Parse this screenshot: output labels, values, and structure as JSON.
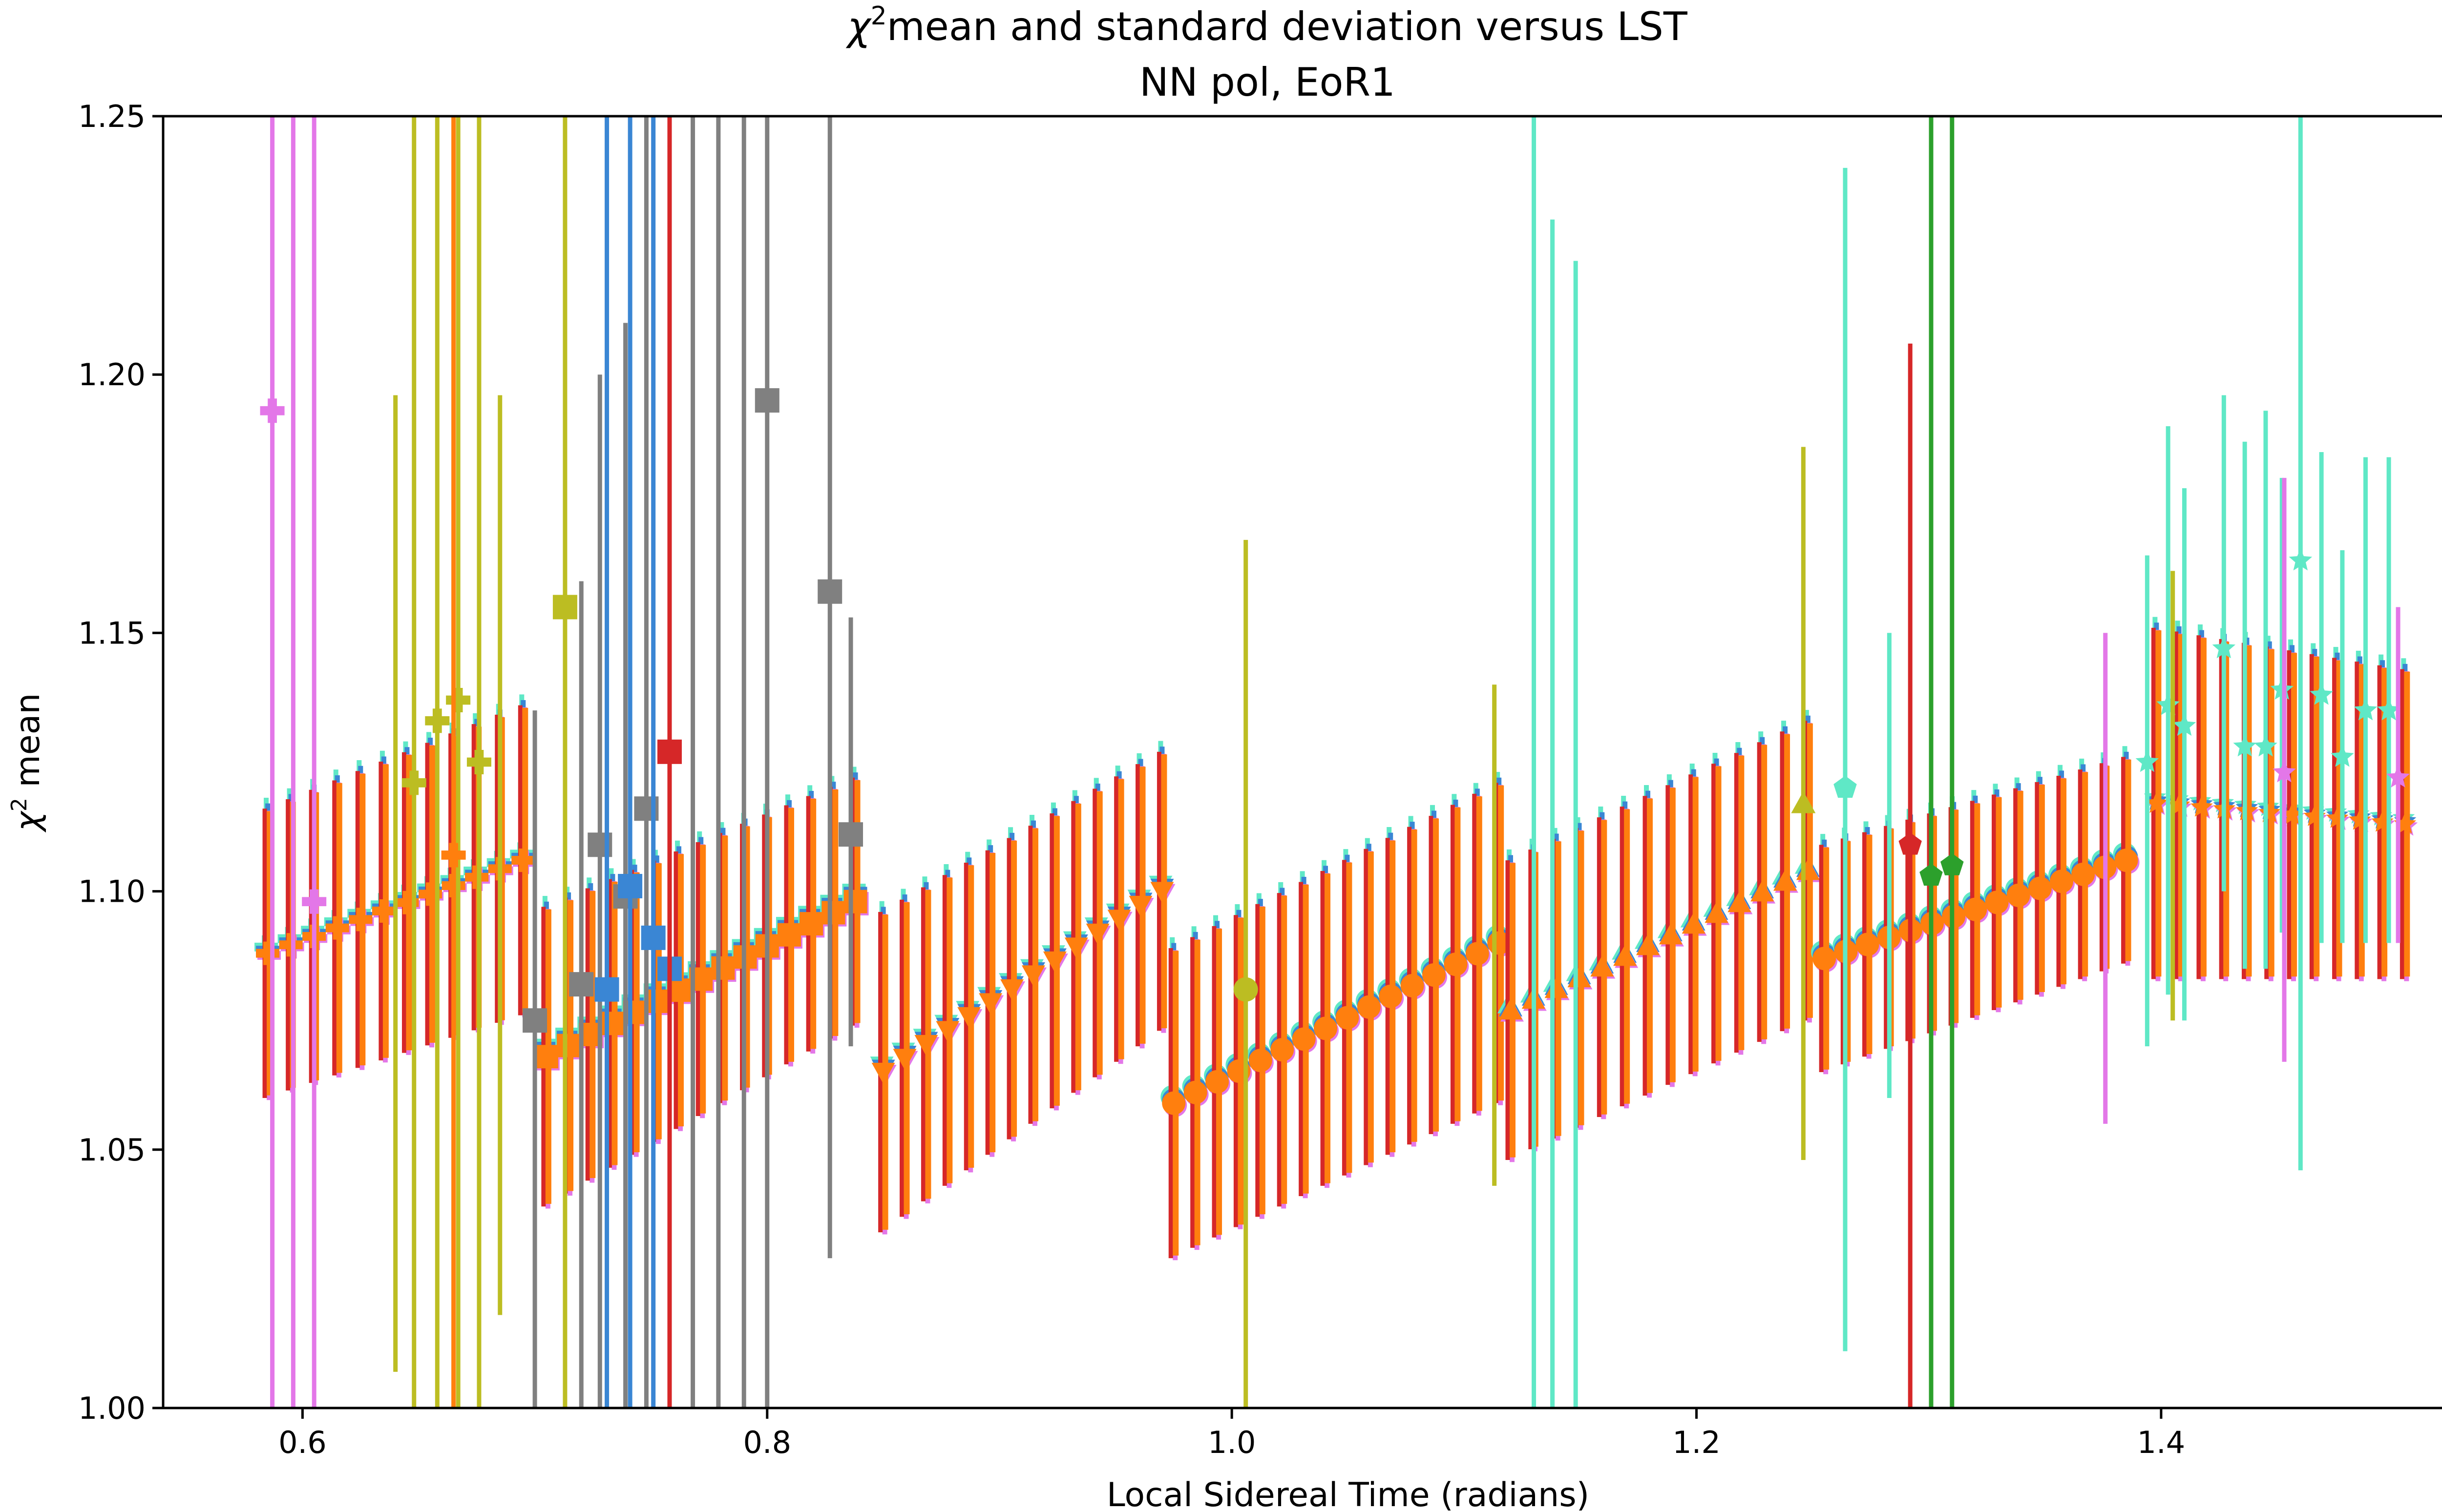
{
  "chart_data": {
    "type": "scatter",
    "title": "χ² mean and standard deviation versus LST",
    "title_main": "mean and standard deviation versus LST",
    "title_symbol": "χ",
    "title_superscript": "2",
    "subtitle": "NN pol, EoR1",
    "xlabel": "Local Sidereal Time (radians)",
    "ylabel": "χ² mean",
    "ylabel_symbol": "χ",
    "ylabel_superscript": "2",
    "ylabel_rest": " mean",
    "xlim": [
      0.54,
      1.56
    ],
    "ylim": [
      1.0,
      1.25
    ],
    "xticks": [
      0.6,
      0.8,
      1.0,
      1.2,
      1.4
    ],
    "xtick_labels": [
      "0.6",
      "0.8",
      "1.0",
      "1.2",
      "1.4"
    ],
    "yticks": [
      1.0,
      1.05,
      1.1,
      1.15,
      1.2,
      1.25
    ],
    "ytick_labels": [
      "1.00",
      "1.05",
      "1.10",
      "1.15",
      "1.20",
      "1.25"
    ],
    "grid": false,
    "segments": [
      {
        "x_start": 0.585,
        "x_end": 0.695,
        "y_start": 1.088,
        "y_end": 1.106,
        "err_start": 0.028,
        "err_end": 0.03,
        "marker": "plus"
      },
      {
        "x_start": 0.705,
        "x_end": 0.838,
        "y_start": 1.068,
        "y_end": 1.098,
        "err_start": 0.029,
        "err_end": 0.024,
        "marker": "square"
      },
      {
        "x_start": 0.85,
        "x_end": 0.97,
        "y_start": 1.065,
        "y_end": 1.1,
        "err_start": 0.031,
        "err_end": 0.027,
        "marker": "triangle-down"
      },
      {
        "x_start": 0.975,
        "x_end": 1.115,
        "y_start": 1.059,
        "y_end": 1.09,
        "err_start": 0.03,
        "err_end": 0.031,
        "marker": "circle"
      },
      {
        "x_start": 1.12,
        "x_end": 1.248,
        "y_start": 1.077,
        "y_end": 1.104,
        "err_start": 0.029,
        "err_end": 0.029,
        "marker": "triangle-up"
      },
      {
        "x_start": 1.255,
        "x_end": 1.385,
        "y_start": 1.087,
        "y_end": 1.106,
        "err_start": 0.022,
        "err_end": 0.02,
        "marker": "circle"
      },
      {
        "x_start": 1.398,
        "x_end": 1.505,
        "y_start": 1.117,
        "y_end": 1.113,
        "err_start": 0.034,
        "err_end": 0.03,
        "marker": "star"
      }
    ],
    "highlighted_points": [
      {
        "x": 0.587,
        "y": 1.193,
        "lo": 1.0,
        "hi": 1.25,
        "color": "#e377e8",
        "marker": "plus"
      },
      {
        "x": 0.605,
        "y": 1.098,
        "lo": 1.0,
        "hi": 1.25,
        "color": "#e377e8",
        "marker": "plus"
      },
      {
        "x": 0.596,
        "y": 1.13,
        "lo": 1.0,
        "hi": 1.25,
        "color": "#e377e8",
        "marker": "none"
      },
      {
        "x": 0.648,
        "y": 1.121,
        "lo": 1.0,
        "hi": 1.25,
        "color": "#bcbd22",
        "marker": "plus"
      },
      {
        "x": 0.658,
        "y": 1.133,
        "lo": 1.0,
        "hi": 1.25,
        "color": "#bcbd22",
        "marker": "plus"
      },
      {
        "x": 0.667,
        "y": 1.137,
        "lo": 1.0,
        "hi": 1.25,
        "color": "#bcbd22",
        "marker": "plus"
      },
      {
        "x": 0.676,
        "y": 1.125,
        "lo": 1.0,
        "hi": 1.25,
        "color": "#bcbd22",
        "marker": "plus"
      },
      {
        "x": 0.64,
        "y": 1.1,
        "lo": 1.007,
        "hi": 1.196,
        "color": "#bcbd22",
        "marker": "none"
      },
      {
        "x": 0.685,
        "y": 1.11,
        "lo": 1.018,
        "hi": 1.196,
        "color": "#bcbd22",
        "marker": "none"
      },
      {
        "x": 0.665,
        "y": 1.107,
        "lo": 1.0,
        "hi": 1.25,
        "color": "#ff7f0e",
        "marker": "plus"
      },
      {
        "x": 0.713,
        "y": 1.155,
        "lo": 1.0,
        "hi": 1.25,
        "color": "#bcbd22",
        "marker": "square"
      },
      {
        "x": 0.7,
        "y": 1.075,
        "lo": 1.0,
        "hi": 1.135,
        "color": "#808080",
        "marker": "square"
      },
      {
        "x": 0.72,
        "y": 1.082,
        "lo": 1.0,
        "hi": 1.16,
        "color": "#808080",
        "marker": "square"
      },
      {
        "x": 0.728,
        "y": 1.109,
        "lo": 1.0,
        "hi": 1.2,
        "color": "#808080",
        "marker": "square"
      },
      {
        "x": 0.739,
        "y": 1.099,
        "lo": 1.0,
        "hi": 1.21,
        "color": "#808080",
        "marker": "square"
      },
      {
        "x": 0.748,
        "y": 1.116,
        "lo": 1.0,
        "hi": 1.25,
        "color": "#808080",
        "marker": "square"
      },
      {
        "x": 0.768,
        "y": 1.09,
        "lo": 1.0,
        "hi": 1.25,
        "color": "#808080",
        "marker": "none"
      },
      {
        "x": 0.779,
        "y": 1.09,
        "lo": 1.0,
        "hi": 1.25,
        "color": "#808080",
        "marker": "none"
      },
      {
        "x": 0.79,
        "y": 1.09,
        "lo": 1.0,
        "hi": 1.25,
        "color": "#808080",
        "marker": "none"
      },
      {
        "x": 0.8,
        "y": 1.195,
        "lo": 1.0,
        "hi": 1.25,
        "color": "#808080",
        "marker": "square"
      },
      {
        "x": 0.827,
        "y": 1.158,
        "lo": 1.029,
        "hi": 1.25,
        "color": "#808080",
        "marker": "square"
      },
      {
        "x": 0.836,
        "y": 1.111,
        "lo": 1.07,
        "hi": 1.153,
        "color": "#808080",
        "marker": "square"
      },
      {
        "x": 0.731,
        "y": 1.081,
        "lo": 1.0,
        "hi": 1.25,
        "color": "#3a86d4",
        "marker": "square"
      },
      {
        "x": 0.741,
        "y": 1.101,
        "lo": 1.0,
        "hi": 1.25,
        "color": "#3a86d4",
        "marker": "square"
      },
      {
        "x": 0.751,
        "y": 1.091,
        "lo": 1.0,
        "hi": 1.25,
        "color": "#3a86d4",
        "marker": "square"
      },
      {
        "x": 0.758,
        "y": 1.085,
        "lo": 1.0,
        "hi": 1.25,
        "color": "#3a86d4",
        "marker": "square"
      },
      {
        "x": 0.758,
        "y": 1.127,
        "lo": 1.0,
        "hi": 1.25,
        "color": "#d62728",
        "marker": "square"
      },
      {
        "x": 1.006,
        "y": 1.081,
        "lo": 1.0,
        "hi": 1.168,
        "color": "#bcbd22",
        "marker": "circle"
      },
      {
        "x": 1.113,
        "y": 1.09,
        "lo": 1.043,
        "hi": 1.14,
        "color": "#bcbd22",
        "marker": "none"
      },
      {
        "x": 1.246,
        "y": 1.117,
        "lo": 1.048,
        "hi": 1.186,
        "color": "#bcbd22",
        "marker": "triangle-up"
      },
      {
        "x": 1.13,
        "y": 1.09,
        "lo": 1.0,
        "hi": 1.25,
        "color": "#5fe8c6",
        "marker": "none"
      },
      {
        "x": 1.138,
        "y": 1.09,
        "lo": 1.0,
        "hi": 1.23,
        "color": "#5fe8c6",
        "marker": "none"
      },
      {
        "x": 1.148,
        "y": 1.09,
        "lo": 1.0,
        "hi": 1.222,
        "color": "#5fe8c6",
        "marker": "none"
      },
      {
        "x": 1.264,
        "y": 1.12,
        "lo": 1.011,
        "hi": 1.24,
        "color": "#5fe8c6",
        "marker": "pentagon"
      },
      {
        "x": 1.283,
        "y": 1.1,
        "lo": 1.06,
        "hi": 1.15,
        "color": "#5fe8c6",
        "marker": "none"
      },
      {
        "x": 1.292,
        "y": 1.109,
        "lo": 1.0,
        "hi": 1.206,
        "color": "#d62728",
        "marker": "pentagon"
      },
      {
        "x": 1.301,
        "y": 1.103,
        "lo": 1.0,
        "hi": 1.25,
        "color": "#2ca02c",
        "marker": "pentagon"
      },
      {
        "x": 1.31,
        "y": 1.105,
        "lo": 1.0,
        "hi": 1.25,
        "color": "#2ca02c",
        "marker": "pentagon"
      },
      {
        "x": 1.376,
        "y": 1.103,
        "lo": 1.055,
        "hi": 1.15,
        "color": "#e377e8",
        "marker": "none"
      },
      {
        "x": 1.394,
        "y": 1.125,
        "lo": 1.07,
        "hi": 1.165,
        "color": "#5fe8c6",
        "marker": "star"
      },
      {
        "x": 1.403,
        "y": 1.136,
        "lo": 1.08,
        "hi": 1.19,
        "color": "#5fe8c6",
        "marker": "star"
      },
      {
        "x": 1.41,
        "y": 1.132,
        "lo": 1.075,
        "hi": 1.178,
        "color": "#5fe8c6",
        "marker": "star"
      },
      {
        "x": 1.405,
        "y": 1.12,
        "lo": 1.075,
        "hi": 1.162,
        "color": "#bcbd22",
        "marker": "none"
      },
      {
        "x": 1.427,
        "y": 1.147,
        "lo": 1.1,
        "hi": 1.196,
        "color": "#5fe8c6",
        "marker": "star"
      },
      {
        "x": 1.436,
        "y": 1.128,
        "lo": 1.085,
        "hi": 1.187,
        "color": "#5fe8c6",
        "marker": "star"
      },
      {
        "x": 1.445,
        "y": 1.128,
        "lo": 1.085,
        "hi": 1.193,
        "color": "#5fe8c6",
        "marker": "star"
      },
      {
        "x": 1.452,
        "y": 1.139,
        "lo": 1.092,
        "hi": 1.18,
        "color": "#5fe8c6",
        "marker": "star"
      },
      {
        "x": 1.46,
        "y": 1.164,
        "lo": 1.046,
        "hi": 1.25,
        "color": "#5fe8c6",
        "marker": "star"
      },
      {
        "x": 1.469,
        "y": 1.138,
        "lo": 1.09,
        "hi": 1.185,
        "color": "#5fe8c6",
        "marker": "star"
      },
      {
        "x": 1.478,
        "y": 1.126,
        "lo": 1.09,
        "hi": 1.166,
        "color": "#5fe8c6",
        "marker": "star"
      },
      {
        "x": 1.488,
        "y": 1.135,
        "lo": 1.09,
        "hi": 1.184,
        "color": "#5fe8c6",
        "marker": "star"
      },
      {
        "x": 1.498,
        "y": 1.135,
        "lo": 1.09,
        "hi": 1.184,
        "color": "#5fe8c6",
        "marker": "star"
      },
      {
        "x": 1.453,
        "y": 1.123,
        "lo": 1.067,
        "hi": 1.18,
        "color": "#e377e8",
        "marker": "star"
      },
      {
        "x": 1.502,
        "y": 1.122,
        "lo": 1.09,
        "hi": 1.155,
        "color": "#e377e8",
        "marker": "star"
      }
    ],
    "series_colors": [
      "#ff7f0e",
      "#d62728",
      "#e377e8",
      "#bcbd22",
      "#5fe8c6",
      "#3a86d4",
      "#2ca02c",
      "#808080"
    ]
  }
}
